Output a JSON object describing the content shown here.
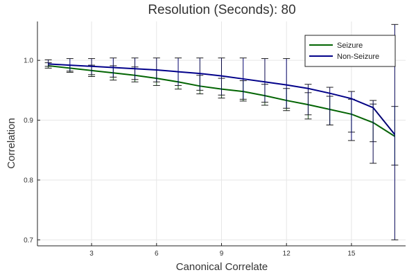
{
  "chart_data": {
    "type": "line",
    "title": "Resolution (Seconds): 80",
    "xlabel": "Canonical Correlate",
    "ylabel": "Correlation",
    "xlim": [
      0.5,
      17.5
    ],
    "ylim": [
      0.69,
      1.065
    ],
    "xticks": [
      3,
      6,
      9,
      12,
      15
    ],
    "yticks": [
      0.7,
      0.8,
      0.9,
      1.0
    ],
    "ytick_labels": [
      "0.7",
      "0.8",
      "0.9",
      "1.0"
    ],
    "grid": true,
    "legend_position": "top-right",
    "x": [
      1,
      2,
      3,
      4,
      5,
      6,
      7,
      8,
      9,
      10,
      11,
      12,
      13,
      14,
      15,
      16,
      17
    ],
    "series": [
      {
        "name": "Seizure",
        "color": "#006400",
        "values": [
          0.991,
          0.987,
          0.983,
          0.979,
          0.975,
          0.97,
          0.964,
          0.957,
          0.952,
          0.948,
          0.941,
          0.933,
          0.926,
          0.918,
          0.91,
          0.896,
          0.873
        ],
        "err_low": [
          0.987,
          0.98,
          0.973,
          0.967,
          0.964,
          0.958,
          0.952,
          0.944,
          0.937,
          0.932,
          0.925,
          0.916,
          0.902,
          0.892,
          0.88,
          0.864,
          0.825
        ],
        "err_high": [
          0.996,
          0.992,
          0.992,
          0.991,
          0.989,
          0.984,
          0.981,
          0.975,
          0.97,
          0.966,
          0.96,
          0.953,
          0.946,
          0.94,
          0.935,
          0.927,
          0.923
        ]
      },
      {
        "name": "Non-Seizure",
        "color": "#00008b",
        "values": [
          0.994,
          0.992,
          0.99,
          0.988,
          0.986,
          0.984,
          0.981,
          0.978,
          0.974,
          0.969,
          0.964,
          0.959,
          0.953,
          0.945,
          0.936,
          0.921,
          0.876
        ],
        "err_low": [
          0.99,
          0.982,
          0.976,
          0.972,
          0.968,
          0.964,
          0.958,
          0.95,
          0.942,
          0.935,
          0.93,
          0.92,
          0.909,
          0.892,
          0.866,
          0.828,
          0.7
        ],
        "err_high": [
          1.001,
          1.003,
          1.003,
          1.004,
          1.004,
          1.004,
          1.004,
          1.004,
          1.004,
          1.004,
          1.003,
          1.003,
          0.96,
          0.955,
          0.948,
          0.933,
          1.06
        ]
      }
    ]
  }
}
